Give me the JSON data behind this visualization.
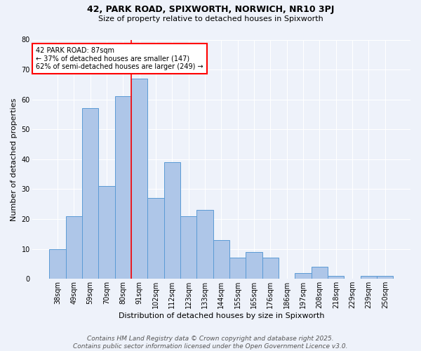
{
  "title1": "42, PARK ROAD, SPIXWORTH, NORWICH, NR10 3PJ",
  "title2": "Size of property relative to detached houses in Spixworth",
  "xlabel": "Distribution of detached houses by size in Spixworth",
  "ylabel": "Number of detached properties",
  "categories": [
    "38sqm",
    "49sqm",
    "59sqm",
    "70sqm",
    "80sqm",
    "91sqm",
    "102sqm",
    "112sqm",
    "123sqm",
    "133sqm",
    "144sqm",
    "155sqm",
    "165sqm",
    "176sqm",
    "186sqm",
    "197sqm",
    "208sqm",
    "218sqm",
    "229sqm",
    "239sqm",
    "250sqm"
  ],
  "values": [
    10,
    21,
    57,
    31,
    61,
    67,
    27,
    39,
    21,
    23,
    13,
    7,
    9,
    7,
    0,
    2,
    4,
    1,
    0,
    1,
    1
  ],
  "bar_color": "#aec6e8",
  "bar_edge_color": "#5b9bd5",
  "vline_color": "red",
  "vline_x_index": 5,
  "annotation_line1": "42 PARK ROAD: 87sqm",
  "annotation_line2": "← 37% of detached houses are smaller (147)",
  "annotation_line3": "62% of semi-detached houses are larger (249) →",
  "annotation_box_edge": "red",
  "ylim": [
    0,
    80
  ],
  "yticks": [
    0,
    10,
    20,
    30,
    40,
    50,
    60,
    70,
    80
  ],
  "background_color": "#eef2fa",
  "grid_color": "#ffffff",
  "footer_text": "Contains HM Land Registry data © Crown copyright and database right 2025.\nContains public sector information licensed under the Open Government Licence v3.0.",
  "title1_fontsize": 9,
  "title2_fontsize": 8,
  "xlabel_fontsize": 8,
  "ylabel_fontsize": 8,
  "tick_fontsize": 7,
  "annotation_fontsize": 7,
  "footer_fontsize": 6.5
}
